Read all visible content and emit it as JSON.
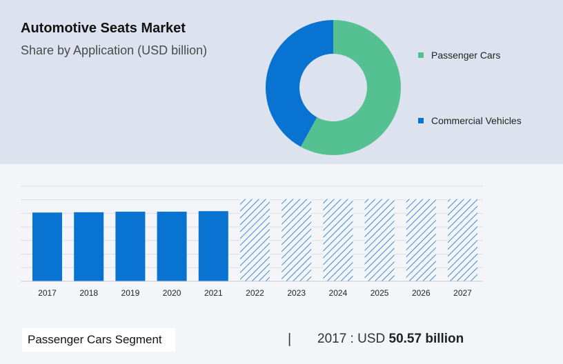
{
  "header": {
    "title": "Automotive Seats Market",
    "subtitle": "Share by Application (USD billion)"
  },
  "colors": {
    "passenger": "#55c193",
    "commercial": "#0873d0",
    "forecast_hatch": "#0873d0"
  },
  "chart_data": [
    {
      "type": "pie",
      "donut": true,
      "slices": [
        {
          "label": "Passenger Cars",
          "value": 58,
          "color": "#55c193"
        },
        {
          "label": "Commercial Vehicles",
          "value": 42,
          "color": "#0873d0"
        }
      ],
      "legend": "right"
    },
    {
      "type": "bar",
      "categories": [
        "2017",
        "2018",
        "2019",
        "2020",
        "2021",
        "2022",
        "2023",
        "2024",
        "2025",
        "2026",
        "2027"
      ],
      "values": [
        50.57,
        50.8,
        51.2,
        51.2,
        51.6,
        60.5,
        60.5,
        60.5,
        60.5,
        60.5,
        60.5
      ],
      "forecast_from": "2022",
      "ylim": [
        0,
        70
      ],
      "grid": true
    }
  ],
  "footer": {
    "segment": "Passenger Cars Segment",
    "separator": "|",
    "year_prefix": "2017 : USD",
    "value": "50.57 billion"
  }
}
